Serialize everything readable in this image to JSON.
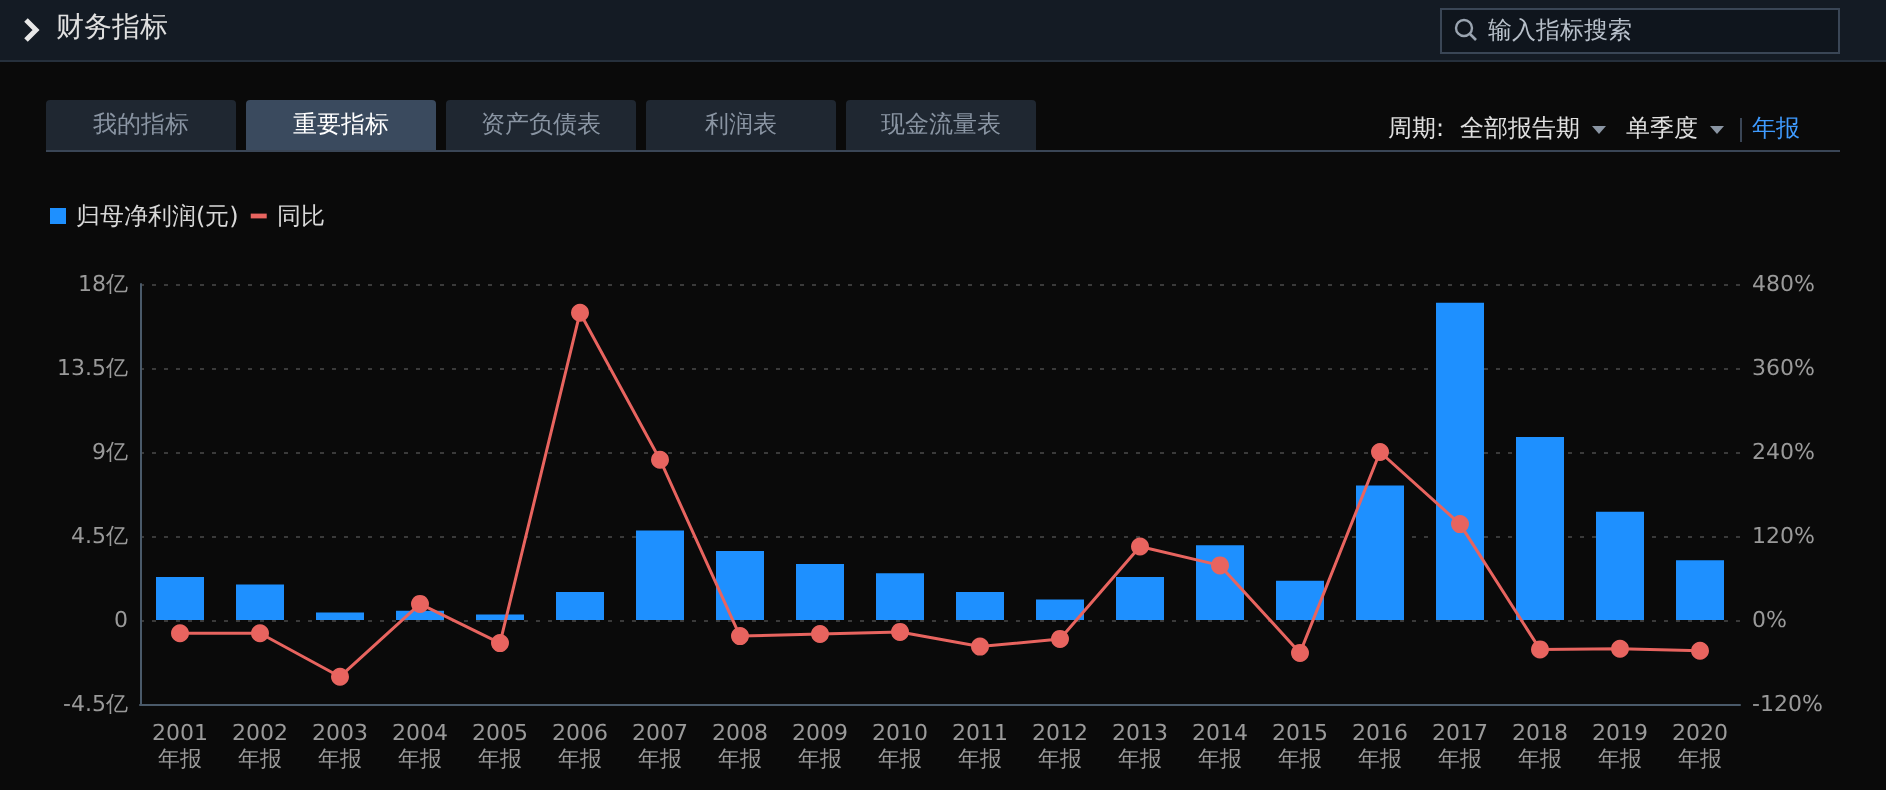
{
  "chart_data": {
    "type": "bar",
    "title": "财务指标",
    "annotations": [
      "输入指标搜索",
      "我的指标",
      "重要指标",
      "资产负债表",
      "利润表",
      "现金流量表",
      "周期:",
      "全部报告期",
      "单季度",
      "年报"
    ],
    "categories": [
      "2001\n年报",
      "2002\n年报",
      "2003\n年报",
      "2004\n年报",
      "2005\n年报",
      "2006\n年报",
      "2007\n年报",
      "2008\n年报",
      "2009\n年报",
      "2010\n年报",
      "2011\n年报",
      "2012\n年报",
      "2013\n年报",
      "2014\n年报",
      "2015\n年报",
      "2016\n年报",
      "2017\n年报",
      "2018\n年报",
      "2019\n年报",
      "2020\n年报"
    ],
    "series": [
      {
        "name": "归母净利润(元)",
        "color": "#1e90ff",
        "values": [
          2.3,
          1.9,
          0.4,
          0.5,
          0.3,
          1.5,
          4.8,
          3.7,
          3.0,
          2.5,
          1.5,
          1.1,
          2.3,
          4.0,
          2.1,
          7.2,
          17.0,
          9.8,
          5.8,
          3.2
        ]
      },
      {
        "name": "同比",
        "type": "line",
        "axis": "y2",
        "color": "#e8645f",
        "values": [
          -19,
          -19,
          -81,
          23,
          -33,
          439,
          229,
          -23,
          -20,
          -17,
          -38,
          -27,
          105,
          78,
          -47,
          240,
          137,
          -42,
          -41,
          -44
        ]
      }
    ],
    "ylim": [
      -4.5,
      18
    ],
    "yticks": [
      {
        "value": -4.5,
        "label": "-4.5亿"
      },
      0,
      {
        "value": 4.5,
        "label": "4.5亿"
      },
      {
        "value": 9,
        "label": "9亿"
      },
      {
        "value": 13.5,
        "label": "13.5亿"
      },
      {
        "value": 18,
        "label": "18亿"
      }
    ],
    "y2lim": [
      -120,
      480
    ],
    "y2ticks": [
      {
        "value": -120,
        "label": "-120%"
      },
      {
        "value": 0,
        "label": "0%"
      },
      {
        "value": 120,
        "label": "120%"
      },
      {
        "value": 240,
        "label": "240%"
      },
      {
        "value": 360,
        "label": "360%"
      },
      {
        "value": 480,
        "label": "480%"
      }
    ],
    "grid": "y",
    "legend": "top left",
    "marker": "circle",
    "line_style": "solid"
  }
}
